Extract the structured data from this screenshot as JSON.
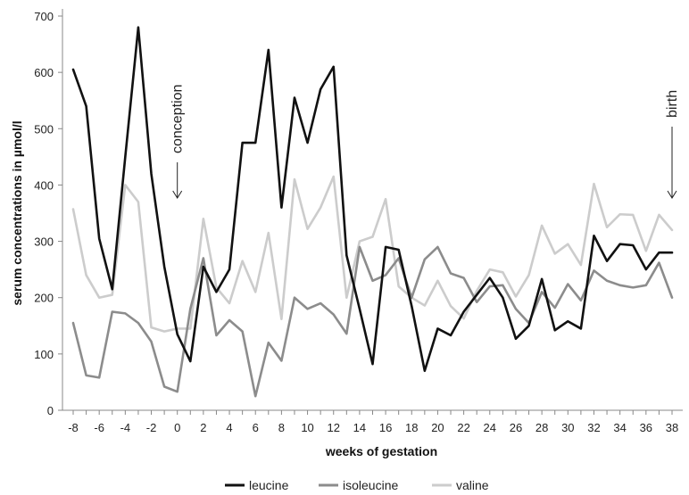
{
  "chart_data": {
    "type": "line",
    "xlabel": "weeks of gestation",
    "ylabel": "serum concentrations in µmol/l",
    "xlim": [
      -8,
      38
    ],
    "ylim": [
      0,
      700
    ],
    "y_ticks": [
      0,
      100,
      200,
      300,
      400,
      500,
      600,
      700
    ],
    "x_tick_labels": [
      "-8",
      "-6",
      "-4",
      "-2",
      "0",
      "2",
      "4",
      "6",
      "8",
      "10",
      "12",
      "14",
      "16",
      "18",
      "20",
      "22",
      "24",
      "26",
      "28",
      "30",
      "32",
      "34",
      "36",
      "38"
    ],
    "grid": false,
    "legend_position": "bottom",
    "x": [
      -8,
      -7,
      -6,
      -5,
      -4,
      -3,
      -2,
      -1,
      0,
      1,
      2,
      3,
      4,
      5,
      6,
      7,
      8,
      9,
      10,
      11,
      12,
      13,
      14,
      15,
      16,
      17,
      18,
      19,
      20,
      21,
      22,
      23,
      24,
      25,
      26,
      27,
      28,
      29,
      30,
      31,
      32,
      33,
      34,
      35,
      36,
      37,
      38
    ],
    "series": [
      {
        "name": "leucine",
        "color": "#111111",
        "values": [
          605,
          540,
          305,
          215,
          450,
          680,
          420,
          255,
          135,
          87,
          255,
          210,
          250,
          475,
          475,
          640,
          360,
          555,
          475,
          570,
          610,
          275,
          180,
          82,
          290,
          285,
          185,
          70,
          145,
          133,
          175,
          205,
          235,
          200,
          127,
          150,
          233,
          142,
          158,
          145,
          310,
          265,
          295,
          293,
          250,
          280,
          280
        ]
      },
      {
        "name": "isoleucine",
        "color": "#8c8c8c",
        "values": [
          155,
          62,
          58,
          175,
          172,
          155,
          122,
          42,
          33,
          180,
          270,
          133,
          160,
          140,
          25,
          120,
          88,
          200,
          180,
          190,
          170,
          136,
          290,
          230,
          240,
          270,
          200,
          268,
          290,
          243,
          235,
          192,
          220,
          222,
          180,
          155,
          210,
          182,
          224,
          195,
          248,
          230,
          222,
          218,
          222,
          262,
          200
        ]
      },
      {
        "name": "valine",
        "color": "#cccccc",
        "values": [
          357,
          240,
          200,
          205,
          400,
          370,
          147,
          140,
          145,
          145,
          340,
          218,
          190,
          265,
          210,
          315,
          162,
          410,
          322,
          360,
          415,
          200,
          300,
          308,
          375,
          220,
          200,
          186,
          230,
          185,
          163,
          212,
          250,
          245,
          202,
          240,
          328,
          278,
          295,
          258,
          402,
          325,
          348,
          347,
          283,
          347,
          320
        ]
      }
    ],
    "annotations": [
      {
        "text": "conception",
        "x": 0
      },
      {
        "text": "birth",
        "x": 38
      }
    ]
  }
}
